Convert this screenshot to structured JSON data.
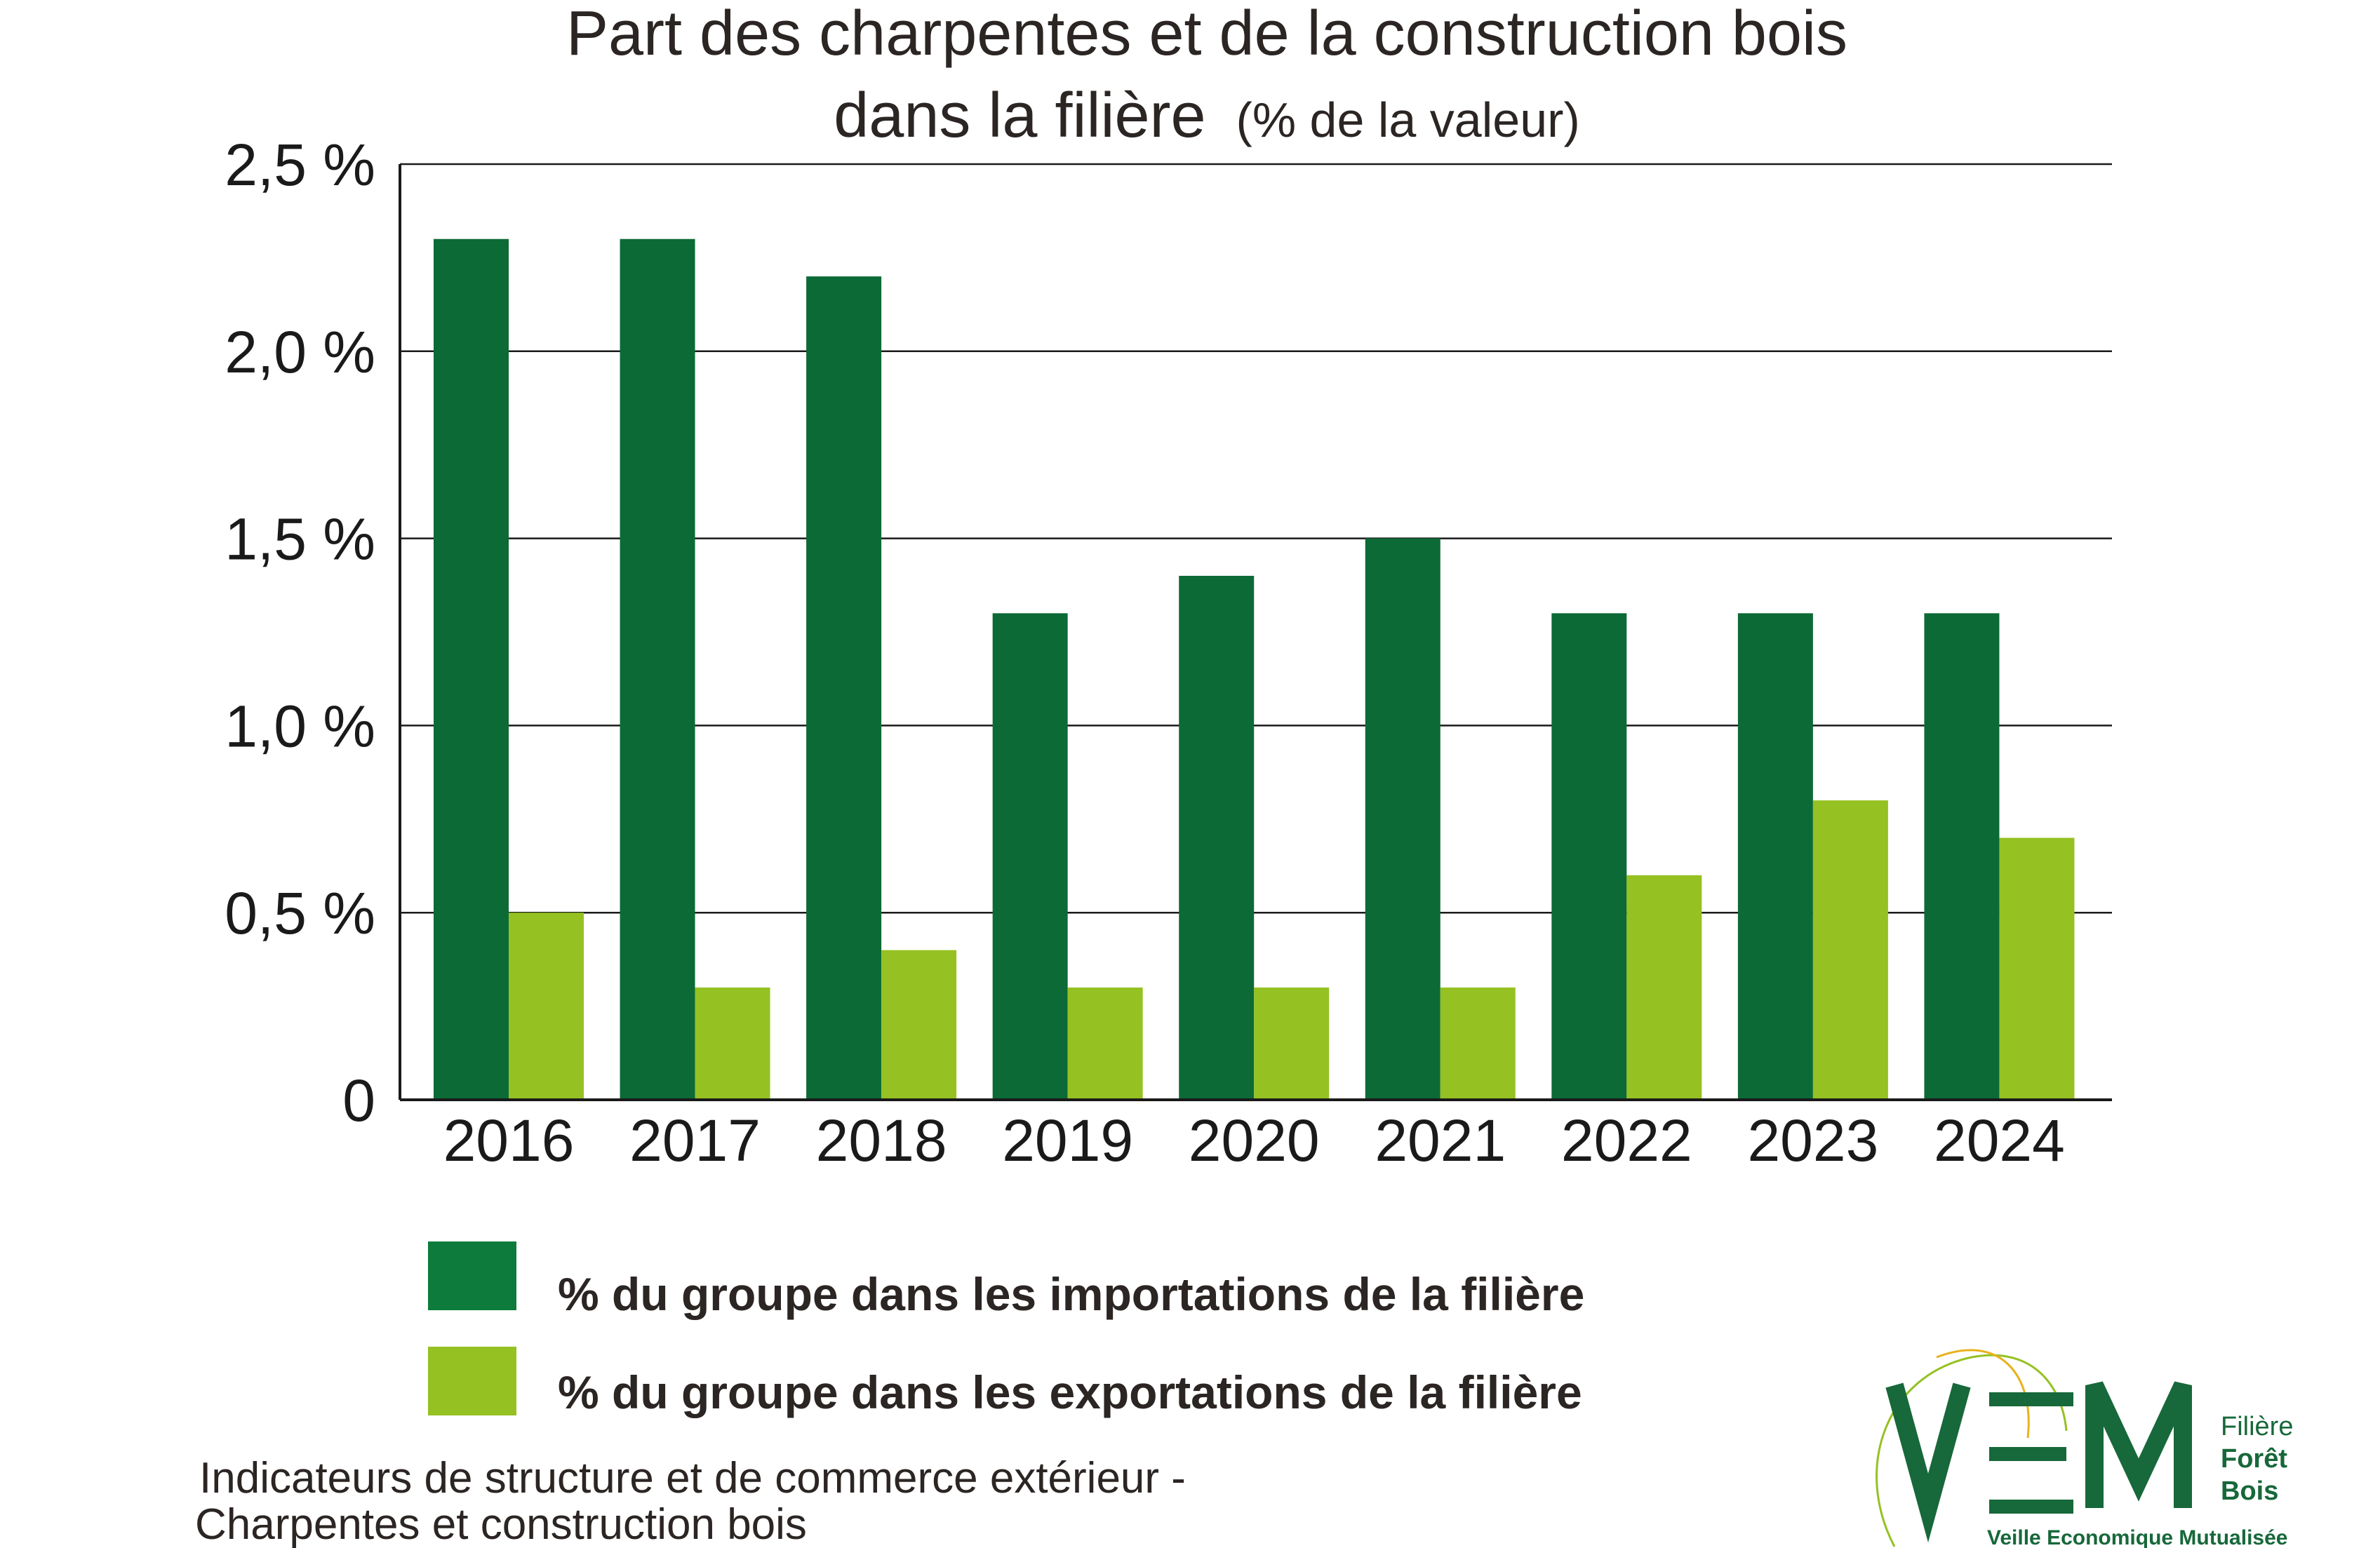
{
  "chart_data": {
    "type": "bar",
    "title_line1": "Part des charpentes et de la construction bois",
    "title_line2": "dans la filière",
    "title_unit": "(% de la valeur)",
    "categories": [
      "2016",
      "2017",
      "2018",
      "2019",
      "2020",
      "2021",
      "2022",
      "2023",
      "2024"
    ],
    "series": [
      {
        "name": "% du groupe dans les importations de la filière",
        "color": "#0c6a36",
        "legend_color": "#0d7b3b",
        "values": [
          2.3,
          2.3,
          2.2,
          1.3,
          1.4,
          1.5,
          1.3,
          1.3,
          1.3
        ]
      },
      {
        "name": "% du groupe dans les exportations de la filière",
        "color": "#95c122",
        "legend_color": "#95c122",
        "values": [
          0.5,
          0.3,
          0.4,
          0.3,
          0.3,
          0.3,
          0.6,
          0.8,
          0.7
        ]
      }
    ],
    "ylim": [
      0,
      2.5
    ],
    "ytick_values": [
      0,
      0.5,
      1.0,
      1.5,
      2.0,
      2.5
    ],
    "ytick_labels": [
      "0",
      "0,5 %",
      "1,0 %",
      "1,5 %",
      "2,0 %",
      "2,5 %"
    ],
    "grid": true,
    "legend_position": "bottom"
  },
  "footer": {
    "line1": "Indicateurs de structure et de commerce extérieur -",
    "line2": "Charpentes et construction bois"
  },
  "logo": {
    "letters": "VEM",
    "side_line1": "Filière",
    "side_line2": "Forêt",
    "side_line3": "Bois",
    "tagline": "Veille Economique Mutualisée"
  }
}
